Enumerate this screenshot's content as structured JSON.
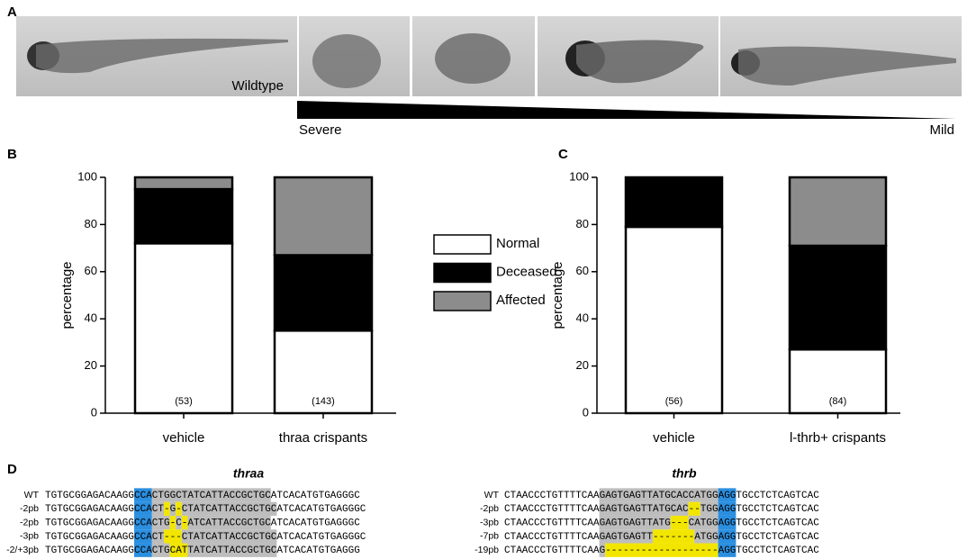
{
  "panel_labels": [
    "A",
    "B",
    "C",
    "D"
  ],
  "panel_a": {
    "wildtype_label": "Wildtype",
    "severe_label": "Severe",
    "mild_label": "Mild"
  },
  "legend": {
    "names_from": "chart_data.0.series"
  },
  "chart_data": [
    {
      "type": "stacked-bar",
      "y_label": "percentage",
      "categories": [
        "vehicle",
        "thraa crispants"
      ],
      "count_labels": [
        "(53)",
        "(143)"
      ],
      "ylim": [
        0,
        100
      ],
      "yticks": [
        0,
        20,
        40,
        60,
        80,
        100
      ],
      "series": [
        {
          "name": "Normal",
          "color": "#ffffff",
          "values": [
            72,
            35
          ]
        },
        {
          "name": "Deceased",
          "color": "#000000",
          "values": [
            23,
            32
          ]
        },
        {
          "name": "Affected",
          "color": "#8c8c8c",
          "values": [
            5,
            33
          ]
        }
      ]
    },
    {
      "type": "stacked-bar",
      "y_label": "percentage",
      "categories": [
        "vehicle",
        "l-thrb+ crispants"
      ],
      "count_labels": [
        "(56)",
        "(84)"
      ],
      "ylim": [
        0,
        100
      ],
      "yticks": [
        0,
        20,
        40,
        60,
        80,
        100
      ],
      "series": [
        {
          "color": "#ffffff",
          "values": [
            79,
            27
          ]
        },
        {
          "color": "#000000",
          "values": [
            21,
            44
          ]
        },
        {
          "color": "#8c8c8c",
          "values": [
            0,
            29
          ]
        }
      ]
    }
  ],
  "panel_d": {
    "alignments": [
      {
        "title": "thraa",
        "rows": [
          {
            "label": "WT",
            "segments": [
              {
                "text": "TGTGCGGAGACAAGG"
              },
              {
                "text": "CCA",
                "color": "#2b8fe0"
              },
              {
                "text": "CTGGCTATCATTACCGCTGC",
                "color": "#bdbdbd"
              },
              {
                "text": "ATCACATGTGAGGGC"
              }
            ]
          },
          {
            "label": "-2pb",
            "segments": [
              {
                "text": "TGTGCGGAGACAAGG"
              },
              {
                "text": "CCA",
                "color": "#2b8fe0"
              },
              {
                "text": "CT",
                "color": "#bdbdbd"
              },
              {
                "text": "-",
                "color": "#f2e600"
              },
              {
                "text": "G",
                "color": "#bdbdbd"
              },
              {
                "text": "-",
                "color": "#f2e600"
              },
              {
                "text": "CTATCATTACCGCTGC",
                "color": "#bdbdbd"
              },
              {
                "text": "ATCACATGTGAGGGC"
              }
            ]
          },
          {
            "label": "-2pb",
            "segments": [
              {
                "text": "TGTGCGGAGACAAGG"
              },
              {
                "text": "CCA",
                "color": "#2b8fe0"
              },
              {
                "text": "CTG",
                "color": "#bdbdbd"
              },
              {
                "text": "-",
                "color": "#f2e600"
              },
              {
                "text": "C",
                "color": "#bdbdbd"
              },
              {
                "text": "-",
                "color": "#f2e600"
              },
              {
                "text": "ATCATTACCGCTGC",
                "color": "#bdbdbd"
              },
              {
                "text": "ATCACATGTGAGGGC"
              }
            ]
          },
          {
            "label": "-3pb",
            "segments": [
              {
                "text": "TGTGCGGAGACAAGG"
              },
              {
                "text": "CCA",
                "color": "#2b8fe0"
              },
              {
                "text": "CT",
                "color": "#bdbdbd"
              },
              {
                "text": "---",
                "color": "#f2e600"
              },
              {
                "text": "CTATCATTACCGCTGC",
                "color": "#bdbdbd"
              },
              {
                "text": "ATCACATGTGAGGGC"
              }
            ]
          },
          {
            "label": "-2/+3pb",
            "segments": [
              {
                "text": "TGTGCGGAGACAAGG"
              },
              {
                "text": "CCA",
                "color": "#2b8fe0"
              },
              {
                "text": "CTG",
                "color": "#bdbdbd"
              },
              {
                "text": "CAT",
                "color": "#f2e600"
              },
              {
                "text": "TATCATTACCGCTGC",
                "color": "#bdbdbd"
              },
              {
                "text": "ATCACATGTGAGGG"
              }
            ]
          }
        ]
      },
      {
        "title": "thrb",
        "rows": [
          {
            "label": "WT",
            "segments": [
              {
                "text": "CTAACCCTGTTTTCAA"
              },
              {
                "text": "GAGTGAGTTATGCACCATGG",
                "color": "#bdbdbd"
              },
              {
                "text": "AGG",
                "color": "#2b8fe0"
              },
              {
                "text": "TGCCTCTCAGTCAC"
              }
            ]
          },
          {
            "label": "-2pb",
            "segments": [
              {
                "text": "CTAACCCTGTTTTCAA"
              },
              {
                "text": "GAGTGAGTTATGCAC",
                "color": "#bdbdbd"
              },
              {
                "text": "--",
                "color": "#f2e600"
              },
              {
                "text": "TGG",
                "color": "#bdbdbd"
              },
              {
                "text": "AGG",
                "color": "#2b8fe0"
              },
              {
                "text": "TGCCTCTCAGTCAC"
              }
            ]
          },
          {
            "label": "-3pb",
            "segments": [
              {
                "text": "CTAACCCTGTTTTCAA"
              },
              {
                "text": "GAGTGAGTTATG",
                "color": "#bdbdbd"
              },
              {
                "text": "---",
                "color": "#f2e600"
              },
              {
                "text": "CATGG",
                "color": "#bdbdbd"
              },
              {
                "text": "AGG",
                "color": "#2b8fe0"
              },
              {
                "text": "TGCCTCTCAGTCAC"
              }
            ]
          },
          {
            "label": "-7pb",
            "segments": [
              {
                "text": "CTAACCCTGTTTTCAA"
              },
              {
                "text": "GAGTGAGTT",
                "color": "#bdbdbd"
              },
              {
                "text": "-------",
                "color": "#f2e600"
              },
              {
                "text": "ATGG",
                "color": "#bdbdbd"
              },
              {
                "text": "AGG",
                "color": "#2b8fe0"
              },
              {
                "text": "TGCCTCTCAGTCAC"
              }
            ]
          },
          {
            "label": "-19pb",
            "segments": [
              {
                "text": "CTAACCCTGTTTTCAA"
              },
              {
                "text": "G",
                "color": "#bdbdbd"
              },
              {
                "text": "-------------------",
                "color": "#f2e600"
              },
              {
                "text": "AGG",
                "color": "#2b8fe0"
              },
              {
                "text": "TGCCTCTCAGTCAC"
              }
            ]
          }
        ]
      }
    ]
  }
}
